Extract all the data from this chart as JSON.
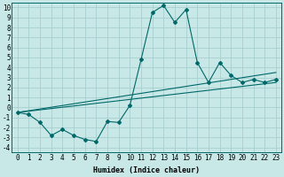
{
  "bg_color": "#c8e8e8",
  "grid_color": "#a8cece",
  "line_color": "#006868",
  "xlabel": "Humidex (Indice chaleur)",
  "xlim": [
    -0.5,
    23.5
  ],
  "ylim": [
    -4.5,
    10.5
  ],
  "xticks": [
    0,
    1,
    2,
    3,
    4,
    5,
    6,
    7,
    8,
    9,
    10,
    11,
    12,
    13,
    14,
    15,
    16,
    17,
    18,
    19,
    20,
    21,
    22,
    23
  ],
  "yticks": [
    -4,
    -3,
    -2,
    -1,
    0,
    1,
    2,
    3,
    4,
    5,
    6,
    7,
    8,
    9,
    10
  ],
  "curve_x": [
    0,
    1,
    2,
    3,
    4,
    5,
    6,
    7,
    8,
    9,
    10,
    11,
    12,
    13,
    14,
    15,
    16,
    17,
    18,
    19,
    20,
    21,
    22,
    23
  ],
  "curve_y": [
    -0.5,
    -0.7,
    -1.5,
    -2.8,
    -2.2,
    -2.8,
    -3.2,
    -3.4,
    -1.4,
    -1.5,
    0.2,
    4.8,
    9.5,
    10.2,
    8.5,
    9.8,
    4.5,
    2.5,
    4.5,
    3.2,
    2.5,
    2.8,
    2.5,
    2.8
  ],
  "line1_x": [
    0,
    23
  ],
  "line1_y": [
    -0.5,
    3.5
  ],
  "line2_x": [
    0,
    23
  ],
  "line2_y": [
    -0.5,
    2.5
  ],
  "marker_style": "D",
  "marker_size": 2.0,
  "linewidth": 0.8,
  "tick_fontsize": 5.5,
  "xlabel_fontsize": 6.0
}
